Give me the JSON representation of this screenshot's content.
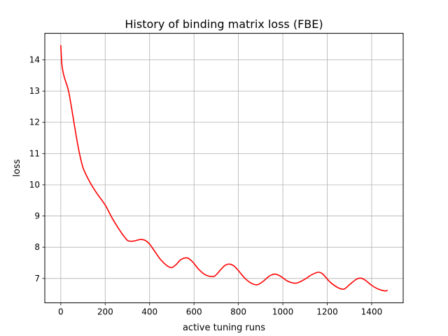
{
  "chart_data": {
    "type": "line",
    "title": "History of binding matrix loss (FBE)",
    "xlabel": "active tuning runs",
    "ylabel": "loss",
    "xlim": [
      -72,
      1542
    ],
    "ylim": [
      6.22,
      14.85
    ],
    "xticks": [
      0,
      200,
      400,
      600,
      800,
      1000,
      1200,
      1400
    ],
    "yticks": [
      7,
      8,
      9,
      10,
      11,
      12,
      13,
      14
    ],
    "grid": true,
    "series": [
      {
        "color": "#ff0000",
        "x": [
          0,
          5,
          12,
          20,
          35,
          50,
          65,
          80,
          100,
          130,
          160,
          200,
          230,
          260,
          290,
          305,
          330,
          360,
          380,
          400,
          420,
          450,
          480,
          500,
          520,
          540,
          565,
          580,
          600,
          620,
          650,
          685,
          700,
          720,
          740,
          760,
          780,
          800,
          830,
          860,
          885,
          910,
          940,
          965,
          990,
          1020,
          1050,
          1070,
          1100,
          1130,
          1160,
          1180,
          1200,
          1220,
          1250,
          1275,
          1300,
          1330,
          1350,
          1370,
          1400,
          1430,
          1460,
          1470
        ],
        "y": [
          14.46,
          13.85,
          13.55,
          13.35,
          13.0,
          12.4,
          11.75,
          11.15,
          10.55,
          10.1,
          9.75,
          9.35,
          8.95,
          8.6,
          8.3,
          8.2,
          8.2,
          8.25,
          8.22,
          8.1,
          7.9,
          7.6,
          7.4,
          7.35,
          7.45,
          7.6,
          7.66,
          7.62,
          7.48,
          7.3,
          7.12,
          7.06,
          7.12,
          7.28,
          7.42,
          7.46,
          7.4,
          7.25,
          7.0,
          6.84,
          6.8,
          6.9,
          7.08,
          7.14,
          7.07,
          6.92,
          6.85,
          6.87,
          6.98,
          7.12,
          7.2,
          7.14,
          6.98,
          6.84,
          6.7,
          6.66,
          6.8,
          6.97,
          7.01,
          6.95,
          6.78,
          6.66,
          6.6,
          6.62
        ]
      }
    ]
  }
}
